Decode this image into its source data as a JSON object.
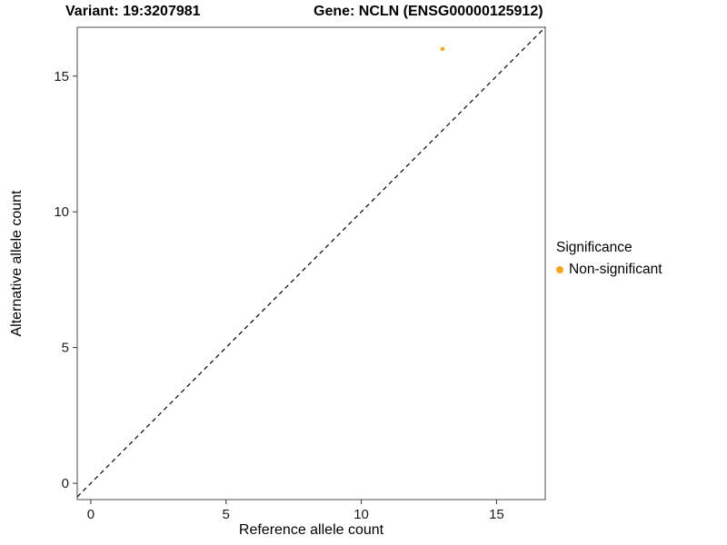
{
  "chart_data": {
    "type": "scatter",
    "title_left": "Variant: 19:3207981",
    "title_right": "Gene: NCLN (ENSG00000125912)",
    "xlabel": "Reference allele count",
    "ylabel": "Alternative allele count",
    "xlim": [
      -0.5,
      16.8
    ],
    "ylim": [
      -0.6,
      16.8
    ],
    "x_ticks": [
      0,
      5,
      10,
      15
    ],
    "y_ticks": [
      0,
      5,
      10,
      15
    ],
    "grid": false,
    "identity_line": {
      "style": "dashed",
      "slope": 1,
      "intercept": 0
    },
    "points": [
      {
        "x": 13,
        "y": 16,
        "series": "Non-significant"
      }
    ],
    "point_color": "#F5A623",
    "panel_border_color": "#4d4d4d",
    "tick_color": "#333333",
    "legend": {
      "title": "Significance",
      "position": "right",
      "entries": [
        {
          "label": "Non-significant",
          "color": "#F5A623"
        }
      ]
    }
  }
}
